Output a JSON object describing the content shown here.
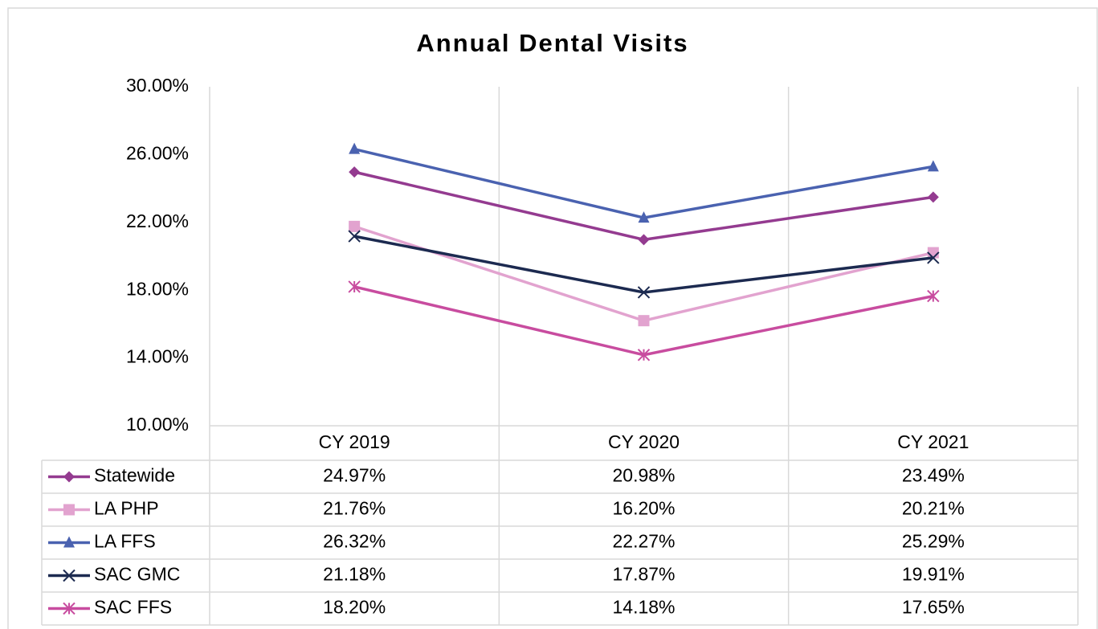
{
  "chart_data": {
    "type": "line",
    "title": "Annual Dental Visits",
    "categories": [
      "CY 2019",
      "CY 2020",
      "CY 2021"
    ],
    "series": [
      {
        "name": "Statewide",
        "color": "#943b90",
        "marker": "diamond",
        "values": [
          24.97,
          20.98,
          23.49
        ],
        "value_labels": [
          "24.97%",
          "20.98%",
          "23.49%"
        ]
      },
      {
        "name": "LA PHP",
        "color": "#e2a3cf",
        "marker": "square",
        "values": [
          21.76,
          16.2,
          20.21
        ],
        "value_labels": [
          "21.76%",
          "16.20%",
          "20.21%"
        ]
      },
      {
        "name": "LA FFS",
        "color": "#4a62b0",
        "marker": "triangle",
        "values": [
          26.32,
          22.27,
          25.29
        ],
        "value_labels": [
          "26.32%",
          "22.27%",
          "25.29%"
        ]
      },
      {
        "name": "SAC GMC",
        "color": "#1c2a50",
        "marker": "x",
        "values": [
          21.18,
          17.87,
          19.91
        ],
        "value_labels": [
          "21.18%",
          "17.87%",
          "19.91%"
        ]
      },
      {
        "name": "SAC FFS",
        "color": "#c84c9f",
        "marker": "star",
        "values": [
          18.2,
          14.18,
          17.65
        ],
        "value_labels": [
          "18.20%",
          "14.18%",
          "17.65%"
        ]
      }
    ],
    "ylim": [
      10,
      30
    ],
    "yticks": [
      {
        "value": 10,
        "label": "10.00%"
      },
      {
        "value": 14,
        "label": "14.00%"
      },
      {
        "value": 18,
        "label": "18.00%"
      },
      {
        "value": 22,
        "label": "22.00%"
      },
      {
        "value": 26,
        "label": "26.00%"
      },
      {
        "value": 30,
        "label": "30.00%"
      }
    ],
    "data_table": true
  }
}
